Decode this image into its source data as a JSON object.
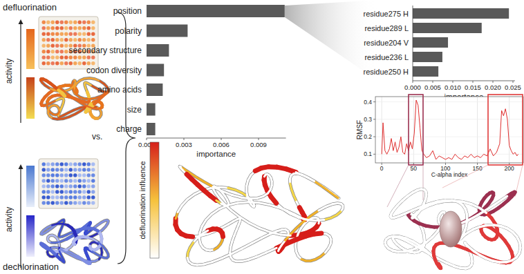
{
  "chart_data": [
    {
      "type": "bar",
      "orientation": "horizontal",
      "categories": [
        "position",
        "polarity",
        "secondary structure",
        "codon diversity",
        "amino acids",
        "size",
        "charge"
      ],
      "values": [
        0.0111,
        0.0033,
        0.0018,
        0.0014,
        0.0013,
        0.0007,
        0.0007
      ],
      "color": "#595959",
      "x_label": "importance",
      "xlim": [
        0,
        0.0112
      ],
      "xticks": [
        {
          "value": 0,
          "label": "0.000"
        },
        {
          "value": 0.003,
          "label": "0.003"
        },
        {
          "value": 0.006,
          "label": "0.006"
        },
        {
          "value": 0.009,
          "label": "0.009"
        }
      ]
    },
    {
      "type": "bar",
      "orientation": "horizontal",
      "categories": [
        "residue275 H",
        "residue289 L",
        "residue204 V",
        "residue236 L",
        "residue250 H"
      ],
      "values": [
        0.024,
        0.0172,
        0.0088,
        0.0074,
        0.0064
      ],
      "color": "#595959",
      "x_label": "importance",
      "xlim": [
        0,
        0.0255
      ],
      "xticks": [
        {
          "value": 0,
          "label": "0.000"
        },
        {
          "value": 0.005,
          "label": "0.005"
        },
        {
          "value": 0.01,
          "label": "0.010"
        },
        {
          "value": 0.015,
          "label": "0.015"
        },
        {
          "value": 0.02,
          "label": "0.020"
        },
        {
          "value": 0.025,
          "label": "0.025"
        }
      ]
    },
    {
      "type": "line",
      "x": [
        0,
        2,
        5,
        8,
        12,
        15,
        18,
        21,
        24,
        27,
        30,
        33,
        36,
        39,
        42,
        45,
        48,
        51,
        54,
        57,
        60,
        63,
        66,
        70,
        75,
        80,
        85,
        90,
        95,
        100,
        105,
        110,
        115,
        120,
        125,
        130,
        135,
        140,
        145,
        150,
        155,
        160,
        165,
        170,
        175,
        180,
        185,
        188,
        191,
        194,
        197,
        200,
        203,
        206,
        209,
        212,
        214
      ],
      "series": [
        {
          "color": "#e03030",
          "values": [
            0.1,
            0.28,
            0.12,
            0.1,
            0.13,
            0.19,
            0.12,
            0.17,
            0.11,
            0.14,
            0.2,
            0.11,
            0.1,
            0.16,
            0.12,
            0.17,
            0.13,
            0.22,
            0.41,
            0.38,
            0.25,
            0.12,
            0.1,
            0.08,
            0.09,
            0.12,
            0.07,
            0.09,
            0.08,
            0.07,
            0.08,
            0.07,
            0.1,
            0.08,
            0.07,
            0.09,
            0.08,
            0.1,
            0.08,
            0.09,
            0.08,
            0.1,
            0.09,
            0.13,
            0.09,
            0.11,
            0.16,
            0.35,
            0.32,
            0.36,
            0.3,
            0.15,
            0.12,
            0.1,
            0.11,
            0.09,
            0.1
          ]
        }
      ],
      "x_label": "C-alpha index",
      "y_label": "RMSF",
      "xlim": [
        -10,
        222
      ],
      "ylim": [
        0.05,
        0.43
      ],
      "xticks": [
        0,
        50,
        100,
        150,
        200
      ],
      "yticks": [
        0.1,
        0.2,
        0.3,
        0.4
      ],
      "grid": true
    }
  ],
  "left_panel": {
    "top_label": "defluorination",
    "top_axis_label": "activity",
    "comparison": "vs.",
    "bottom_axis_label": "activity",
    "bottom_label": "dechlorination"
  },
  "structure_panel": {
    "color_scale_label": "defluorination influence"
  }
}
